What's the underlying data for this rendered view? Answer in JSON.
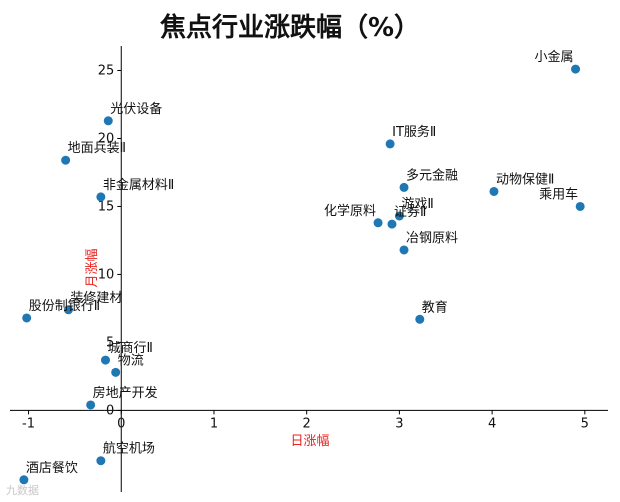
{
  "chart_data": {
    "type": "scatter",
    "title": "焦点行业涨跌幅（%）",
    "xlabel": "日涨幅",
    "ylabel": "月涨幅",
    "xlim": [
      -1.2,
      5.25
    ],
    "ylim": [
      -6.0,
      26.8
    ],
    "xticks": [
      -1,
      0,
      1,
      2,
      3,
      4,
      5
    ],
    "yticks": [
      0,
      5,
      10,
      15,
      20,
      25
    ],
    "grid": false,
    "points": [
      {
        "label": "小金属",
        "x": 4.9,
        "y": 25.1,
        "anchor": "end"
      },
      {
        "label": "光伏设备",
        "x": -0.14,
        "y": 21.3,
        "anchor": "start"
      },
      {
        "label": "IT服务Ⅱ",
        "x": 2.9,
        "y": 19.6,
        "anchor": "start"
      },
      {
        "label": "地面兵装Ⅱ",
        "x": -0.6,
        "y": 18.4,
        "anchor": "start"
      },
      {
        "label": "多元金融",
        "x": 3.05,
        "y": 16.4,
        "anchor": "start"
      },
      {
        "label": "动物保健Ⅱ",
        "x": 4.02,
        "y": 16.1,
        "anchor": "start"
      },
      {
        "label": "非金属材料Ⅱ",
        "x": -0.22,
        "y": 15.7,
        "anchor": "start"
      },
      {
        "label": "乘用车",
        "x": 4.95,
        "y": 15.0,
        "anchor": "end"
      },
      {
        "label": "游戏Ⅱ",
        "x": 3.0,
        "y": 14.3,
        "anchor": "start"
      },
      {
        "label": "化学原料",
        "x": 2.77,
        "y": 13.8,
        "anchor": "end"
      },
      {
        "label": "证券Ⅱ",
        "x": 2.92,
        "y": 13.7,
        "anchor": "start"
      },
      {
        "label": "冶钢原料",
        "x": 3.05,
        "y": 11.8,
        "anchor": "start"
      },
      {
        "label": "装修建材",
        "x": -0.57,
        "y": 7.4,
        "anchor": "start"
      },
      {
        "label": "股份制银行Ⅱ",
        "x": -1.02,
        "y": 6.8,
        "anchor": "start"
      },
      {
        "label": "教育",
        "x": 3.22,
        "y": 6.7,
        "anchor": "start"
      },
      {
        "label": "城商行Ⅱ",
        "x": -0.17,
        "y": 3.7,
        "anchor": "start"
      },
      {
        "label": "物流",
        "x": -0.06,
        "y": 2.8,
        "anchor": "start"
      },
      {
        "label": "房地产开发",
        "x": -0.33,
        "y": 0.4,
        "anchor": "start"
      },
      {
        "label": "航空机场",
        "x": -0.22,
        "y": -3.7,
        "anchor": "start"
      },
      {
        "label": "酒店餐饮",
        "x": -1.05,
        "y": -5.1,
        "anchor": "start"
      }
    ]
  },
  "watermark": "九数据",
  "colors": {
    "point": "#1f77b4",
    "axis_label": "#e8211d",
    "text": "#111111"
  }
}
